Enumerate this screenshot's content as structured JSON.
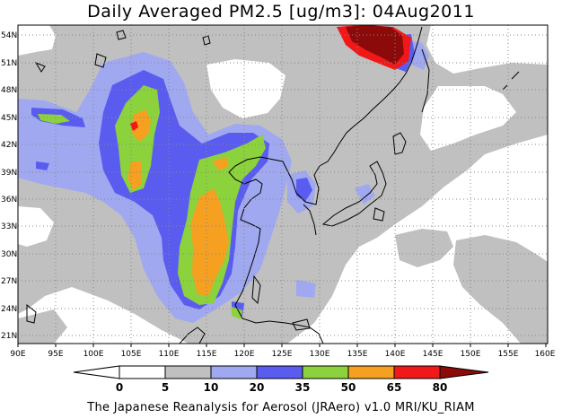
{
  "title": "Daily Averaged PM2.5 [ug/m3]: 04Aug2011",
  "footer": "The Japanese Reanalysis for Aerosol (JRAero) v1.0 MRI/KU_RIAM",
  "map": {
    "lon_range": [
      90,
      160
    ],
    "lat_range": [
      20,
      55
    ],
    "lon_ticks": [
      "90E",
      "95E",
      "100E",
      "105E",
      "110E",
      "115E",
      "120E",
      "125E",
      "130E",
      "135E",
      "140E",
      "145E",
      "150E",
      "155E",
      "160E"
    ],
    "lat_ticks": [
      "21N",
      "24N",
      "27N",
      "30N",
      "33N",
      "36N",
      "39N",
      "42N",
      "45N",
      "48N",
      "51N",
      "54N"
    ],
    "gridlines": "dotted"
  },
  "legend": {
    "levels": [
      "0",
      "5",
      "10",
      "20",
      "35",
      "50",
      "65",
      "80"
    ],
    "colors": [
      "#ffffff",
      "#c0c0c0",
      "#a0a8f0",
      "#5a5cf0",
      "#8cd23c",
      "#f5a020",
      "#f01818",
      "#8c0a0a"
    ],
    "underflow_color": "#ffffff",
    "overflow_color": "#8c0a0a"
  }
}
